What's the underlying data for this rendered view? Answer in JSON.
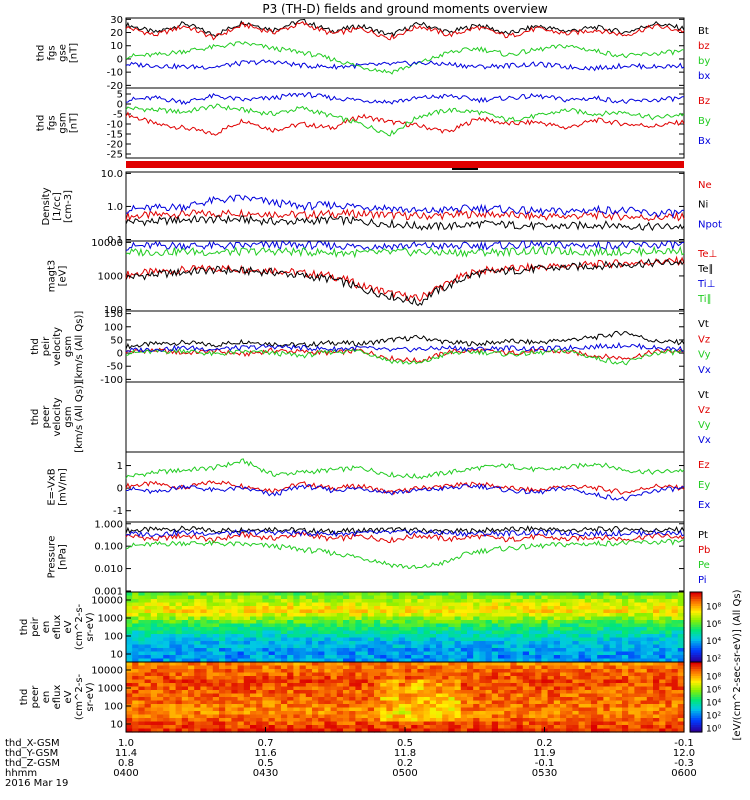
{
  "title": "P3 (TH-D) fields and ground moments overview",
  "colors": {
    "black": "#000000",
    "red": "#e00000",
    "green": "#22cc22",
    "blue": "#0000dd"
  },
  "chart_data": [
    {
      "type": "line",
      "id": "fgs_gse",
      "ylabel": [
        "thd",
        "fgs",
        "gse",
        "[nT]"
      ],
      "yticks": [
        "30",
        "20",
        "10",
        "0",
        "-10",
        "-20"
      ],
      "ylim": [
        -22,
        31
      ],
      "series": [
        {
          "name": "Bt",
          "color": "black",
          "values": [
            26,
            20,
            27,
            18,
            28,
            22,
            29,
            21,
            25,
            18,
            27,
            20,
            26,
            19,
            25,
            21,
            24,
            20,
            27,
            23
          ]
        },
        {
          "name": "bz",
          "color": "red",
          "values": [
            24,
            18,
            25,
            16,
            26,
            20,
            27,
            19,
            23,
            16,
            25,
            18,
            24,
            17,
            23,
            19,
            22,
            18,
            25,
            21
          ]
        },
        {
          "name": "by",
          "color": "green",
          "values": [
            2,
            3,
            6,
            9,
            12,
            8,
            5,
            0,
            -6,
            -10,
            -3,
            5,
            8,
            3,
            7,
            10,
            6,
            2,
            4,
            6
          ]
        },
        {
          "name": "bx",
          "color": "blue",
          "values": [
            -4,
            -5,
            -6,
            -6,
            -3,
            -2,
            -5,
            -6,
            -5,
            -4,
            -3,
            -4,
            -6,
            -5,
            -4,
            -6,
            -7,
            -5,
            -6,
            -5
          ]
        }
      ]
    },
    {
      "type": "line",
      "id": "fgs_gsm",
      "ylabel": [
        "thd",
        "fgs",
        "gsm",
        "[nT]"
      ],
      "yticks": [
        "5",
        "0",
        "-5",
        "-10",
        "-15",
        "-20",
        "-25"
      ],
      "ylim": [
        -27,
        8
      ],
      "series": [
        {
          "name": "Bz",
          "color": "red",
          "values": [
            -5,
            -10,
            -12,
            -15,
            -8,
            -13,
            -10,
            -12,
            -6,
            -9,
            -11,
            -14,
            -7,
            -10,
            -9,
            -12,
            -8,
            -10,
            -11,
            -9
          ]
        },
        {
          "name": "By",
          "color": "green",
          "values": [
            -2,
            -3,
            -4,
            -1,
            -3,
            -5,
            -2,
            -6,
            -10,
            -15,
            -6,
            -3,
            -4,
            -8,
            -6,
            -3,
            -5,
            -4,
            -7,
            -5
          ]
        },
        {
          "name": "Bx",
          "color": "blue",
          "values": [
            2,
            3,
            1,
            4,
            2,
            3,
            5,
            3,
            2,
            1,
            3,
            4,
            2,
            3,
            4,
            2,
            3,
            1,
            2,
            3
          ]
        }
      ]
    },
    {
      "type": "line",
      "id": "density",
      "log": true,
      "ylabel": [
        "Density",
        "[1/cc]",
        "[cm-3]"
      ],
      "yticks": [
        "10.0",
        "1.0",
        "0.1"
      ],
      "ylim": [
        0.09,
        11
      ],
      "series": [
        {
          "name": "Ne",
          "color": "red",
          "values": [
            0.5,
            0.55,
            0.6,
            0.6,
            0.65,
            0.6,
            0.55,
            0.6,
            0.6,
            0.55,
            0.5,
            0.55,
            0.6,
            0.55,
            0.5,
            0.5,
            0.55,
            0.5,
            0.45,
            0.5
          ]
        },
        {
          "name": "Ni",
          "color": "black",
          "values": [
            0.35,
            0.35,
            0.4,
            0.4,
            0.4,
            0.35,
            0.35,
            0.4,
            0.35,
            0.3,
            0.25,
            0.25,
            0.3,
            0.28,
            0.25,
            0.25,
            0.28,
            0.26,
            0.24,
            0.25
          ]
        },
        {
          "name": "Npot",
          "color": "blue",
          "values": [
            0.8,
            0.9,
            1.0,
            1.5,
            1.8,
            1.3,
            1.0,
            1.1,
            1.0,
            0.9,
            0.7,
            0.8,
            0.9,
            0.8,
            0.7,
            0.7,
            0.8,
            0.75,
            0.6,
            0.65
          ]
        }
      ]
    },
    {
      "type": "line",
      "id": "temperature",
      "log": true,
      "ylabel": [
        "magt3",
        "[eV]"
      ],
      "yticks": [
        "10000",
        "1000",
        "100"
      ],
      "ylim": [
        90,
        11000
      ],
      "series": [
        {
          "name": "Te⊥",
          "color": "red",
          "values": [
            1100,
            1300,
            1500,
            1700,
            1600,
            1500,
            1200,
            1000,
            500,
            300,
            200,
            600,
            1400,
            1600,
            1800,
            2000,
            2200,
            2400,
            2600,
            2800
          ]
        },
        {
          "name": "Te∥",
          "color": "black",
          "values": [
            900,
            1100,
            1300,
            1500,
            1400,
            1300,
            1000,
            800,
            400,
            250,
            150,
            500,
            1200,
            1400,
            1600,
            1800,
            2000,
            2200,
            2400,
            2600
          ]
        },
        {
          "name": "Ti⊥",
          "color": "blue",
          "values": [
            7500,
            8000,
            8200,
            7800,
            8000,
            8500,
            8200,
            8000,
            7600,
            7800,
            8000,
            7500,
            8000,
            8200,
            8500,
            8300,
            8000,
            8200,
            8400,
            8500
          ]
        },
        {
          "name": "Ti∥",
          "color": "green",
          "values": [
            5000,
            5200,
            5400,
            5100,
            5300,
            5500,
            5200,
            5000,
            4800,
            5000,
            5200,
            4900,
            5100,
            5300,
            5600,
            5400,
            5200,
            5300,
            5500,
            5600
          ]
        }
      ]
    },
    {
      "type": "line",
      "id": "peir_velocity",
      "ylabel": [
        "thd",
        "peir",
        "velocity",
        "gsm",
        "[km/s (All Qs)]"
      ],
      "yticks": [
        "150",
        "100",
        "50",
        "0",
        "-50",
        "-100"
      ],
      "ylim": [
        -110,
        160
      ],
      "series": [
        {
          "name": "Vt",
          "color": "black",
          "values": [
            25,
            35,
            40,
            30,
            45,
            35,
            30,
            40,
            35,
            50,
            60,
            40,
            35,
            45,
            40,
            50,
            60,
            80,
            45,
            40
          ]
        },
        {
          "name": "Vz",
          "color": "red",
          "values": [
            5,
            10,
            0,
            8,
            -5,
            10,
            5,
            0,
            10,
            -20,
            -30,
            5,
            10,
            0,
            8,
            5,
            -10,
            -20,
            5,
            10
          ]
        },
        {
          "name": "Vy",
          "color": "green",
          "values": [
            0,
            5,
            10,
            -5,
            5,
            0,
            -10,
            5,
            10,
            -30,
            -40,
            0,
            5,
            -5,
            0,
            10,
            -20,
            -40,
            0,
            5
          ]
        },
        {
          "name": "Vx",
          "color": "blue",
          "values": [
            10,
            15,
            20,
            15,
            20,
            25,
            20,
            15,
            20,
            10,
            15,
            20,
            15,
            20,
            15,
            20,
            25,
            30,
            20,
            15
          ]
        }
      ]
    },
    {
      "type": "line",
      "id": "peer_velocity",
      "ylabel": [
        "thd",
        "peer",
        "velocity",
        "gsm",
        "[km/s (All Qs)]"
      ],
      "yticks": [],
      "series": [
        {
          "name": "Vt",
          "color": "black",
          "values": []
        },
        {
          "name": "Vz",
          "color": "red",
          "values": []
        },
        {
          "name": "Vy",
          "color": "green",
          "values": []
        },
        {
          "name": "Vx",
          "color": "blue",
          "values": []
        }
      ]
    },
    {
      "type": "line",
      "id": "efield",
      "ylabel": [
        "E=-VxB",
        "[mV/m]"
      ],
      "yticks": [
        "1",
        "0",
        "-1"
      ],
      "ylim": [
        -1.5,
        1.6
      ],
      "series": [
        {
          "name": "Ez",
          "color": "red",
          "values": [
            0.1,
            0.2,
            0.0,
            0.3,
            0.1,
            -0.1,
            0.2,
            0.0,
            0.1,
            -0.2,
            0.0,
            0.1,
            0.2,
            0.0,
            -0.1,
            0.1,
            0.0,
            -0.2,
            0.1,
            0.0
          ]
        },
        {
          "name": "Ey",
          "color": "green",
          "values": [
            0.5,
            0.7,
            0.8,
            0.9,
            1.2,
            0.6,
            0.7,
            0.8,
            0.9,
            0.6,
            0.5,
            0.7,
            0.9,
            1.0,
            0.8,
            0.9,
            1.1,
            0.8,
            0.7,
            0.8
          ]
        },
        {
          "name": "Ex",
          "color": "blue",
          "values": [
            0.0,
            -0.2,
            0.1,
            -0.1,
            0.0,
            -0.3,
            0.1,
            -0.1,
            0.0,
            -0.2,
            -0.1,
            0.0,
            0.1,
            -0.1,
            -0.2,
            0.0,
            -0.3,
            -0.5,
            -0.1,
            0.0
          ]
        }
      ]
    },
    {
      "type": "line",
      "id": "pressure",
      "log": true,
      "ylabel": [
        "Pressure",
        "[nPa]"
      ],
      "yticks": [
        "1.000",
        "0.100",
        "0.010",
        "0.001"
      ],
      "ylim": [
        0.0009,
        1.2
      ],
      "series": [
        {
          "name": "Pt",
          "color": "black",
          "values": [
            0.5,
            0.55,
            0.6,
            0.5,
            0.55,
            0.6,
            0.5,
            0.45,
            0.5,
            0.55,
            0.5,
            0.45,
            0.5,
            0.55,
            0.6,
            0.5,
            0.55,
            0.6,
            0.5,
            0.55
          ]
        },
        {
          "name": "Pb",
          "color": "red",
          "values": [
            0.3,
            0.2,
            0.3,
            0.18,
            0.32,
            0.22,
            0.35,
            0.2,
            0.28,
            0.18,
            0.3,
            0.2,
            0.28,
            0.19,
            0.27,
            0.2,
            0.26,
            0.2,
            0.3,
            0.25
          ]
        },
        {
          "name": "Pe",
          "color": "green",
          "values": [
            0.1,
            0.12,
            0.14,
            0.13,
            0.12,
            0.1,
            0.07,
            0.05,
            0.03,
            0.015,
            0.01,
            0.02,
            0.06,
            0.08,
            0.1,
            0.12,
            0.13,
            0.14,
            0.15,
            0.16
          ]
        },
        {
          "name": "Pi",
          "color": "blue",
          "values": [
            0.35,
            0.35,
            0.4,
            0.38,
            0.4,
            0.42,
            0.38,
            0.36,
            0.38,
            0.4,
            0.42,
            0.38,
            0.36,
            0.38,
            0.4,
            0.38,
            0.36,
            0.38,
            0.4,
            0.38
          ]
        }
      ]
    },
    {
      "type": "heatmap",
      "id": "peir_spectrogram",
      "ylabel": [
        "thd",
        "peir",
        "en",
        "eflux",
        "eV",
        "(cm^2-s-",
        "sr-eV)"
      ],
      "yticks": [
        "10000",
        "1000",
        "100",
        "10"
      ],
      "colorbar_ticks": [
        "10⁸",
        "10⁶",
        "10⁴",
        "10²"
      ],
      "colorbar_label": "[eV/(cm^2-sec-sr-eV)] (All Qs)",
      "energy_bands": [
        "top",
        "upper",
        "mid",
        "lower",
        "bottom"
      ],
      "band_levels": [
        0.55,
        0.75,
        0.45,
        0.3,
        0.3
      ]
    },
    {
      "type": "heatmap",
      "id": "peer_spectrogram",
      "ylabel": [
        "thd",
        "peer",
        "en",
        "eflux",
        "eV",
        "(cm^2-s-",
        "sr-eV)"
      ],
      "yticks": [
        "10000",
        "1000",
        "100",
        "10"
      ],
      "colorbar_ticks": [
        "10⁸",
        "10⁶",
        "10⁴",
        "10²",
        "10⁰"
      ],
      "colorbar_label": "[eV/(cm^2-sec-sr-eV)] (All Qs)",
      "energy_bands": [
        "top",
        "upper",
        "mid",
        "lower",
        "bottom"
      ],
      "band_levels": [
        0.85,
        0.92,
        0.88,
        0.85,
        0.95
      ]
    }
  ],
  "time_axis": {
    "row_labels": [
      "thd_X-GSM",
      "thd_Y-GSM",
      "thd_Z-GSM",
      "hhmm",
      "2016 Mar 19"
    ],
    "columns": [
      [
        "1.0",
        "11.4",
        "0.8",
        "0400"
      ],
      [
        "0.7",
        "11.6",
        "0.5",
        "0430"
      ],
      [
        "0.5",
        "11.8",
        "0.2",
        "0500"
      ],
      [
        "0.2",
        "11.9",
        "-0.1",
        "0530"
      ],
      [
        "-0.1",
        "12.0",
        "-0.3",
        "0600"
      ]
    ]
  }
}
